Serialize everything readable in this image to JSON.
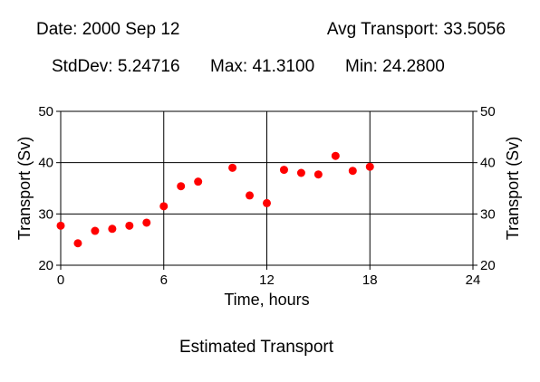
{
  "header": {
    "date": "Date: 2000 Sep 12",
    "avg": "Avg Transport: 33.5056",
    "stddev": "StdDev: 5.24716",
    "max": "Max: 41.3100",
    "min": "Min: 24.2800"
  },
  "caption": "Estimated Transport",
  "chart_data": {
    "type": "scatter",
    "xlabel": "Time, hours",
    "ylabel": "Transport (Sv)",
    "xlim": [
      0,
      24
    ],
    "ylim": [
      20,
      50
    ],
    "xticks": [
      "0",
      "6",
      "12",
      "18",
      "24"
    ],
    "yticks": [
      "20",
      "30",
      "40",
      "50"
    ],
    "grid": true,
    "marker_color": "#ff0000",
    "x": [
      0,
      1,
      2,
      3,
      4,
      5,
      6,
      7,
      8,
      10,
      11,
      12,
      13,
      14,
      15,
      16,
      17,
      18
    ],
    "y": [
      27.7,
      24.28,
      26.7,
      27.1,
      27.7,
      28.3,
      31.5,
      35.4,
      36.3,
      39.0,
      33.6,
      32.1,
      38.6,
      38.0,
      37.7,
      41.31,
      38.4,
      39.2
    ]
  }
}
